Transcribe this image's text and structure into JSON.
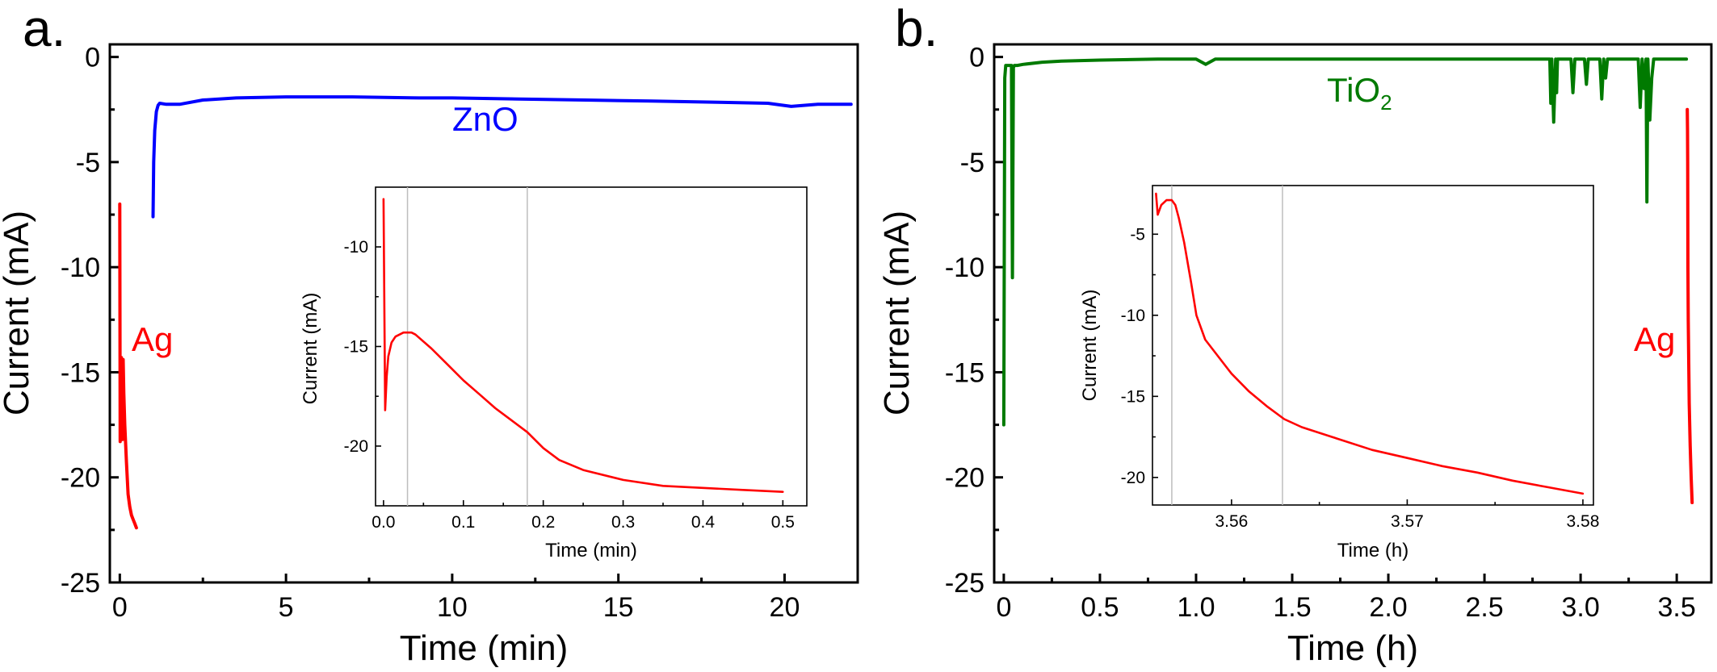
{
  "chart_data": [
    {
      "type": "line",
      "panel_label": "a.",
      "xlabel": "Time (min)",
      "ylabel": "Current (mA)",
      "xlim": [
        -0.3,
        22.2
      ],
      "ylim": [
        -25,
        0.6
      ],
      "xticks": [
        0,
        5,
        10,
        15,
        20
      ],
      "xtick_labels": [
        "0",
        "5",
        "10",
        "15",
        "20"
      ],
      "yticks": [
        0,
        -5,
        -10,
        -15,
        -20,
        -25
      ],
      "ytick_labels": [
        "0",
        "-5",
        "-10",
        "-15",
        "-20",
        "-25"
      ],
      "series": [
        {
          "name": "ZnO",
          "color": "#0000ff",
          "x": [
            1.0,
            1.02,
            1.05,
            1.1,
            1.15,
            1.2,
            1.4,
            1.8,
            2.5,
            3.5,
            5,
            7,
            9,
            10,
            12,
            14,
            16,
            18,
            19.5,
            20.2,
            21,
            22
          ],
          "y": [
            -7.6,
            -5.0,
            -3.5,
            -2.6,
            -2.3,
            -2.2,
            -2.25,
            -2.25,
            -2.05,
            -1.95,
            -1.9,
            -1.9,
            -1.95,
            -1.95,
            -2.0,
            -2.05,
            -2.1,
            -2.15,
            -2.2,
            -2.35,
            -2.25,
            -2.25
          ]
        },
        {
          "name": "Ag",
          "color": "#ff0000",
          "x": [
            0.0,
            0.01,
            0.02,
            0.03,
            0.05,
            0.08,
            0.1,
            0.12,
            0.15,
            0.2,
            0.25,
            0.3,
            0.35,
            0.4,
            0.45,
            0.5
          ],
          "y": [
            -7.0,
            -18.3,
            -15.0,
            -14.5,
            -14.3,
            -18.2,
            -14.4,
            -16.0,
            -17.5,
            -19.3,
            -20.8,
            -21.4,
            -21.8,
            -22.0,
            -22.2,
            -22.4
          ]
        }
      ],
      "annotations": [
        {
          "text": "ZnO",
          "color": "#0000ff"
        },
        {
          "text": "Ag",
          "color": "#ff0000"
        }
      ],
      "inset": {
        "xlabel": "Time (min)",
        "ylabel": "Current (mA)",
        "xlim": [
          -0.01,
          0.53
        ],
        "ylim": [
          -23,
          -7
        ],
        "xticks": [
          0.0,
          0.1,
          0.2,
          0.3,
          0.4,
          0.5
        ],
        "xtick_labels": [
          "0.0",
          "0.1",
          "0.2",
          "0.3",
          "0.4",
          "0.5"
        ],
        "yticks": [
          -10,
          -15,
          -20
        ],
        "ytick_labels": [
          "-10",
          "-15",
          "-20"
        ],
        "vlines": [
          0.03,
          0.18
        ],
        "series": [
          {
            "name": "Ag",
            "color": "#ff0000",
            "x": [
              0.0,
              0.001,
              0.002,
              0.004,
              0.006,
              0.01,
              0.015,
              0.02,
              0.025,
              0.03,
              0.035,
              0.04,
              0.06,
              0.08,
              0.1,
              0.12,
              0.14,
              0.16,
              0.18,
              0.2,
              0.22,
              0.25,
              0.3,
              0.35,
              0.4,
              0.45,
              0.5
            ],
            "y": [
              -7.6,
              -13.0,
              -18.2,
              -16.5,
              -15.5,
              -14.8,
              -14.5,
              -14.4,
              -14.3,
              -14.3,
              -14.3,
              -14.4,
              -15.1,
              -15.9,
              -16.7,
              -17.4,
              -18.1,
              -18.7,
              -19.3,
              -20.1,
              -20.7,
              -21.2,
              -21.7,
              -22.0,
              -22.1,
              -22.2,
              -22.3
            ]
          }
        ]
      }
    },
    {
      "type": "line",
      "panel_label": "b.",
      "xlabel": "Time (h)",
      "ylabel": "Current (mA)",
      "xlim": [
        -0.05,
        3.68
      ],
      "ylim": [
        -25,
        0.6
      ],
      "xticks": [
        0,
        0.5,
        1.0,
        1.5,
        2.0,
        2.5,
        3.0,
        3.5
      ],
      "xtick_labels": [
        "0",
        "0.5",
        "1.0",
        "1.5",
        "2.0",
        "2.5",
        "3.0",
        "3.5"
      ],
      "yticks": [
        0,
        -5,
        -10,
        -15,
        -20,
        -25
      ],
      "ytick_labels": [
        "0",
        "-5",
        "-10",
        "-15",
        "-20",
        "-25"
      ],
      "series": [
        {
          "name": "TiO2",
          "color": "#007a00",
          "x": [
            0.0,
            0.005,
            0.01,
            0.015,
            0.03,
            0.04,
            0.045,
            0.05,
            0.055,
            0.07,
            0.1,
            0.2,
            0.3,
            0.5,
            0.8,
            1.0,
            1.05,
            1.1,
            1.5,
            2.0,
            2.5,
            2.8,
            2.84,
            2.845,
            2.85,
            2.86,
            2.87,
            2.875,
            2.88,
            2.89,
            2.95,
            2.96,
            2.97,
            3.02,
            3.03,
            3.04,
            3.1,
            3.11,
            3.12,
            3.13,
            3.14,
            3.3,
            3.31,
            3.32,
            3.33,
            3.34,
            3.345,
            3.35,
            3.36,
            3.37,
            3.38,
            3.39,
            3.55
          ],
          "y": [
            -17.5,
            -1.0,
            -0.4,
            -0.4,
            -0.4,
            -0.4,
            -10.5,
            -0.5,
            -0.4,
            -0.4,
            -0.35,
            -0.25,
            -0.2,
            -0.15,
            -0.1,
            -0.1,
            -0.35,
            -0.1,
            -0.1,
            -0.1,
            -0.1,
            -0.1,
            -0.1,
            -2.2,
            -0.1,
            -3.1,
            -0.1,
            -1.7,
            -0.1,
            -0.1,
            -0.1,
            -1.7,
            -0.1,
            -0.1,
            -1.3,
            -0.1,
            -0.1,
            -2.0,
            -0.1,
            -1.0,
            -0.1,
            -0.1,
            -2.4,
            -0.1,
            -1.5,
            -0.1,
            -6.9,
            -0.1,
            -3.0,
            -1.0,
            -0.1,
            -0.1,
            -0.1
          ]
        },
        {
          "name": "Ag",
          "color": "#ff0000",
          "x": [
            3.555,
            3.556,
            3.557,
            3.558,
            3.56,
            3.565,
            3.57,
            3.575,
            3.58
          ],
          "y": [
            -2.5,
            -3.5,
            -5.0,
            -10.0,
            -12.5,
            -16.5,
            -18.5,
            -20.0,
            -21.2
          ]
        }
      ],
      "annotations": [
        {
          "text": "TiO",
          "subscript": "2",
          "color": "#007a00"
        },
        {
          "text": "Ag",
          "color": "#ff0000"
        }
      ],
      "inset": {
        "xlabel": "Time (h)",
        "ylabel": "Current (mA)",
        "xlim": [
          3.5555,
          3.5806
        ],
        "ylim": [
          -21.7,
          -2
        ],
        "xticks": [
          3.56,
          3.57,
          3.58
        ],
        "xtick_labels": [
          "3.56",
          "3.57",
          "3.58"
        ],
        "yticks": [
          -5,
          -10,
          -15,
          -20
        ],
        "ytick_labels": [
          "-5",
          "-10",
          "-15",
          "-20"
        ],
        "vlines": [
          3.5566,
          3.5629
        ],
        "series": [
          {
            "name": "Ag",
            "color": "#ff0000",
            "x": [
              3.5557,
              3.5558,
              3.556,
              3.5563,
              3.5566,
              3.5568,
              3.557,
              3.5573,
              3.5577,
              3.558,
              3.5585,
              3.559,
              3.56,
              3.561,
              3.562,
              3.563,
              3.564,
              3.566,
              3.568,
              3.57,
              3.572,
              3.574,
              3.576,
              3.578,
              3.58
            ],
            "y": [
              -2.5,
              -3.8,
              -3.2,
              -2.9,
              -2.9,
              -3.2,
              -4.0,
              -5.5,
              -8.0,
              -10.0,
              -11.5,
              -12.2,
              -13.6,
              -14.7,
              -15.6,
              -16.4,
              -16.9,
              -17.6,
              -18.3,
              -18.8,
              -19.3,
              -19.7,
              -20.2,
              -20.6,
              -21.0
            ]
          }
        ]
      }
    }
  ]
}
